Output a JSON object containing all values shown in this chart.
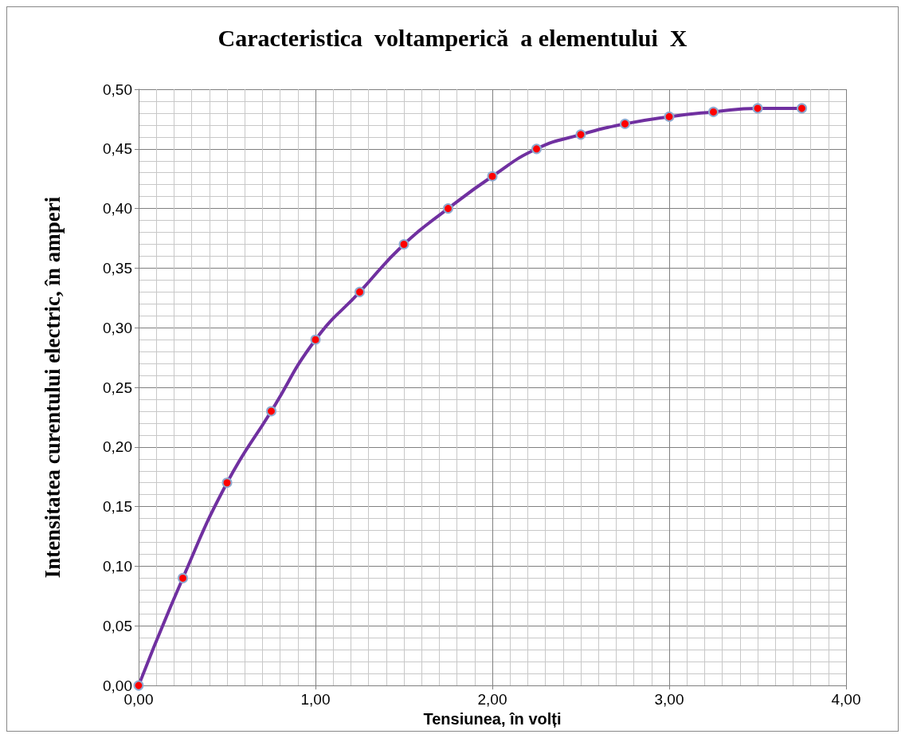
{
  "chart_data": {
    "type": "line",
    "title": "Caracteristica  voltamperică  a elementului  X",
    "xlabel": "Tensiunea, în volți",
    "ylabel": "Intensitatea curentului electric, în amperi",
    "x": [
      0,
      0.25,
      0.5,
      0.75,
      1,
      1.25,
      1.5,
      1.75,
      2,
      2.25,
      2.5,
      2.75,
      3,
      3.25,
      3.5,
      3.75
    ],
    "series": [
      {
        "color": "#7030a0",
        "values": [
          0,
          0.09,
          0.17,
          0.23,
          0.29,
          0.33,
          0.37,
          0.4,
          0.427,
          0.45,
          0.462,
          0.471,
          0.477,
          0.481,
          0.484,
          0.484
        ]
      }
    ],
    "xlim": [
      0,
      4
    ],
    "xticks": [
      {
        "value": 0,
        "label": "0,00"
      },
      {
        "value": 1,
        "label": "1,00"
      },
      {
        "value": 2,
        "label": "2,00"
      },
      {
        "value": 3,
        "label": "3,00"
      },
      {
        "value": 4,
        "label": "4,00"
      }
    ],
    "ylim": [
      0,
      0.5
    ],
    "yticks": [
      {
        "value": 0,
        "label": "0,00"
      },
      {
        "value": 0.05,
        "label": "0,05"
      },
      {
        "value": 0.1,
        "label": "0,10"
      },
      {
        "value": 0.15,
        "label": "0,15"
      },
      {
        "value": 0.2,
        "label": "0,20"
      },
      {
        "value": 0.25,
        "label": "0,25"
      },
      {
        "value": 0.3,
        "label": "0,30"
      },
      {
        "value": 0.35,
        "label": "0,35"
      },
      {
        "value": 0.4,
        "label": "0,40"
      },
      {
        "value": 0.45,
        "label": "0,45"
      },
      {
        "value": 0.5,
        "label": "0,50"
      }
    ],
    "grid": true,
    "marker": "circle",
    "line_style": "solid"
  }
}
